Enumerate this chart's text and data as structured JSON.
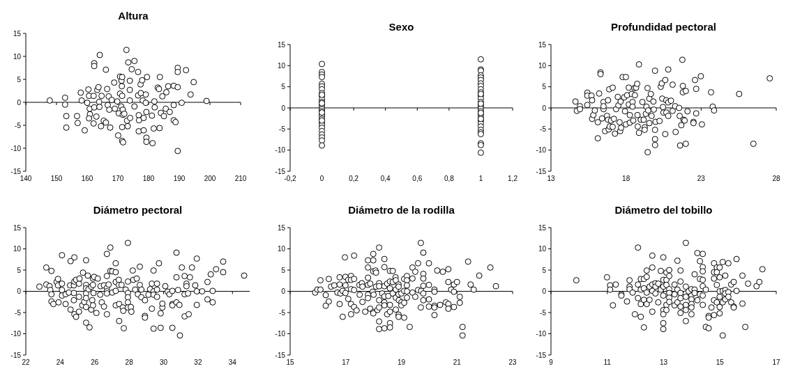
{
  "chart_data": [
    {
      "type": "scatter",
      "title": "Altura",
      "marker": "circle",
      "color": "#000000",
      "xlim": [
        140,
        210
      ],
      "xticks": [
        140,
        150,
        160,
        170,
        180,
        190,
        200,
        210
      ],
      "ylim": [
        -15,
        15
      ],
      "yticks": [
        -15,
        -10,
        -5,
        0,
        5,
        10,
        15
      ],
      "x": [
        147.8,
        152.8,
        152.8,
        153.2,
        153.2,
        156.7,
        156.9,
        157.9,
        158.2,
        159.2,
        160.4,
        160,
        160.6,
        160.8,
        160.9,
        160.6,
        162.3,
        162.3,
        162.1,
        162.3,
        162.1,
        163,
        163.3,
        163.7,
        164.1,
        163.9,
        164,
        164.5,
        164.7,
        165.4,
        166.1,
        166.1,
        166.5,
        167,
        166.7,
        167.2,
        167.5,
        168,
        168.8,
        169,
        169.8,
        170.1,
        170.3,
        170.7,
        170.7,
        171.1,
        171.2,
        171.3,
        171.4,
        171.4,
        171.7,
        171.4,
        171.6,
        171.6,
        171.4,
        172.1,
        172.8,
        173,
        173.2,
        173.4,
        173.9,
        173.9,
        173.9,
        174,
        174.5,
        175.4,
        175.4,
        176.6,
        176.6,
        176.8,
        176.8,
        176.9,
        177.4,
        177.5,
        177.9,
        178.1,
        178.4,
        178.4,
        179.1,
        179.1,
        179.3,
        179.3,
        179.3,
        179.5,
        181.1,
        181.3,
        181.7,
        182,
        181.9,
        183,
        183.4,
        183.6,
        183.7,
        184,
        184.5,
        185,
        185.6,
        185.8,
        186.4,
        186.9,
        188.2,
        188.2,
        188.2,
        188.8,
        189.5,
        189.5,
        189.5,
        189.5,
        190.8,
        192.2,
        193.7,
        194.7,
        198.9
      ],
      "values": [
        0.4,
        1,
        -0.5,
        -3,
        -5.5,
        -3,
        -4.5,
        2.1,
        0.4,
        -6.1,
        2.8,
        -0.1,
        1.4,
        -1.4,
        -2.6,
        -3.5,
        8.5,
        7.9,
        1.4,
        -1.1,
        -4.6,
        -3.1,
        2.7,
        3.3,
        10.3,
        0.1,
        -1,
        -5.2,
        1.4,
        -4,
        7.1,
        -4.4,
        2.9,
        1.3,
        -0.6,
        -1.6,
        -5.5,
        0.5,
        4.3,
        -1.4,
        0.2,
        -7.2,
        -2.4,
        5.6,
        1.9,
        -0.9,
        4.7,
        3.5,
        1.4,
        -8.4,
        -8.7,
        5.5,
        -1.6,
        -2.7,
        -5.4,
        -2.5,
        11.4,
        -4,
        -5.2,
        8.7,
        2.7,
        4.7,
        0.4,
        -3.4,
        7.2,
        9,
        -0.9,
        6.6,
        1.5,
        -2.8,
        -6.3,
        -3.9,
        3.9,
        2,
        4.8,
        0.4,
        -3.4,
        -6.1,
        1.7,
        -0.1,
        -2.1,
        -7.7,
        -8.6,
        5.5,
        -2.9,
        -8.9,
        -5.7,
        -1.1,
        0.2,
        3.2,
        2.9,
        -5.6,
        5.5,
        -2.3,
        1.3,
        -3,
        -1.4,
        2.2,
        3.5,
        -2.1,
        3.6,
        -0.6,
        -3.9,
        -4.3,
        7.5,
        6.6,
        3.3,
        -10.6,
        -0.1,
        7,
        1.7,
        4.4,
        0.3
      ]
    },
    {
      "type": "scatter",
      "title": "Sexo",
      "marker": "circle",
      "color": "#000000",
      "xlim": [
        -0.2,
        1.2
      ],
      "xticks": [
        {
          "value": -0.2,
          "label": "-0,2"
        },
        0,
        {
          "value": 0.2,
          "label": "0,2"
        },
        {
          "value": 0.4,
          "label": "0,4"
        },
        {
          "value": 0.6,
          "label": "0,6"
        },
        {
          "value": 0.8,
          "label": "0,8"
        },
        1,
        {
          "value": 1.2,
          "label": "1,2"
        }
      ],
      "ylim": [
        -15,
        15
      ],
      "yticks": [
        -15,
        -10,
        -5,
        0,
        5,
        10,
        15
      ],
      "x": [
        0,
        0,
        0,
        0,
        0,
        0,
        0,
        0,
        0,
        0,
        0,
        0,
        0,
        0,
        0,
        0,
        0,
        0,
        0,
        0,
        0,
        0,
        0,
        0,
        0,
        0,
        0,
        0,
        0,
        0,
        1,
        1,
        1,
        1,
        1,
        1,
        1,
        1,
        1,
        1,
        1,
        1,
        1,
        1,
        1,
        1,
        1,
        1,
        1,
        1,
        1,
        1,
        1,
        1,
        1,
        1,
        1,
        1,
        1,
        1,
        1,
        1
      ],
      "values": [
        10.4,
        8.5,
        7.9,
        7.3,
        5.7,
        5.1,
        4.4,
        3.5,
        2.8,
        2,
        1.4,
        0.7,
        0.3,
        -0.3,
        -0.8,
        -1.5,
        -2,
        -2.6,
        -3.5,
        -4.1,
        -4.7,
        -5.5,
        -6.3,
        -7,
        -7.7,
        -8.9,
        1.1,
        -1.1,
        -3,
        3.1,
        11.5,
        9.1,
        8.8,
        7.7,
        7.2,
        6.6,
        5.8,
        5.2,
        4.4,
        3.7,
        2.9,
        2.2,
        1.4,
        0.7,
        0.3,
        -0.2,
        -0.8,
        -1.5,
        -2.2,
        -3,
        -3.7,
        -4.4,
        -5.2,
        -5.8,
        -6.2,
        -8.4,
        -8.8,
        -10.6,
        1,
        -1.2,
        3.3,
        -2.6
      ]
    },
    {
      "type": "scatter",
      "title": "Profundidad pectoral",
      "marker": "circle",
      "color": "#000000",
      "xlim": [
        13,
        28
      ],
      "xticks": [
        13,
        18,
        23,
        28
      ],
      "ylim": [
        -15,
        15
      ],
      "yticks": [
        -15,
        -10,
        -5,
        0,
        5,
        10,
        15
      ],
      "x": [
        14.63,
        14.72,
        14.93,
        14.93,
        15.42,
        15.42,
        15.42,
        15.7,
        15.74,
        15.74,
        15.82,
        15.92,
        16.12,
        16.12,
        16.21,
        16.3,
        16.3,
        16.4,
        16.5,
        16.5,
        16.5,
        16.6,
        16.73,
        16.8,
        16.8,
        16.84,
        16.88,
        16.91,
        17,
        17.11,
        17.11,
        17.19,
        17.26,
        17.34,
        17.45,
        17.49,
        17.57,
        17.61,
        17.64,
        17.67,
        17.77,
        17.99,
        17.88,
        17.93,
        17.99,
        18.07,
        18.18,
        18.18,
        18.25,
        18.25,
        18.38,
        18.43,
        18.43,
        18.48,
        18.56,
        18.59,
        18.67,
        18.74,
        18.76,
        18.78,
        18.86,
        18.86,
        18.98,
        19.09,
        19.17,
        19.24,
        19.24,
        19.32,
        19.36,
        19.43,
        19.44,
        19.47,
        19.55,
        19.55,
        19.65,
        19.7,
        19.82,
        19.85,
        19.93,
        19.93,
        19.93,
        19.93,
        19.96,
        20.23,
        20.31,
        20.38,
        20.41,
        20.46,
        20.49,
        20.61,
        20.61,
        20.68,
        20.68,
        20.81,
        20.81,
        20.81,
        20.99,
        21.1,
        21.1,
        21.27,
        21.3,
        21.53,
        21.57,
        21.6,
        21.68,
        21.75,
        21.78,
        21.78,
        21.83,
        21.9,
        21.98,
        21.98,
        22.09,
        22.49,
        22.49,
        22.59,
        22.67,
        22.67,
        22.98,
        23.05,
        23.66,
        23.77,
        23.86,
        25.53,
        26.48,
        27.57
      ],
      "values": [
        1.5,
        -0.7,
        0.4,
        -0.3,
        3.6,
        2.9,
        0.7,
        2.9,
        1.8,
        -2.6,
        -1.7,
        -0.6,
        -3.4,
        -7.2,
        3.4,
        8.4,
        8,
        -2.5,
        1.4,
        -0.3,
        0.4,
        -5.5,
        -1.9,
        1.8,
        -2.8,
        -5.1,
        4.4,
        -4.4,
        -3,
        4.8,
        -4.5,
        -2.6,
        -6.1,
        -0.3,
        2.6,
        0.6,
        -3.4,
        -5.5,
        1.5,
        -4.7,
        7.3,
        7.3,
        2.5,
        -0.8,
        -3.9,
        3,
        4.8,
        0.8,
        -1.7,
        -3.5,
        3.3,
        1.4,
        0.3,
        -3,
        4.7,
        3,
        4.8,
        5.7,
        -1.7,
        -4.4,
        10.3,
        -5.9,
        -2.8,
        1.4,
        -2.8,
        -4.6,
        -5.2,
        -1.4,
        0.3,
        4.7,
        -10.5,
        -0.6,
        2.2,
        -3.6,
        3.3,
        -1.9,
        1.5,
        -0.4,
        8.8,
        -5.2,
        -7.4,
        -8.8,
        -3.3,
        -3.1,
        5,
        5.8,
        2.2,
        0.2,
        -1.1,
        6.6,
        -6.2,
        1.8,
        -1.1,
        1.3,
        -1.9,
        9.1,
        1.7,
        5.5,
        -0.7,
        0.4,
        -5.7,
        0,
        -1.9,
        -8.9,
        -4.1,
        11.4,
        5.2,
        3.7,
        -2.8,
        -3,
        4,
        -8.5,
        -0.8,
        -3.3,
        -3.6,
        6.6,
        4.5,
        -1.3,
        7.5,
        -3.9,
        3.7,
        0.3,
        -0.6,
        3.3,
        -8.5,
        7
      ]
    },
    {
      "type": "scatter",
      "title": "Diámetro pectoral",
      "marker": "circle",
      "color": "#000000",
      "xlim": [
        22,
        35
      ],
      "xticks": [
        22,
        24,
        26,
        28,
        30,
        32,
        34
      ],
      "ylim": [
        -15,
        15
      ],
      "yticks": [
        -15,
        -10,
        -5,
        0,
        5,
        10,
        15
      ],
      "x": [
        22.79,
        23.19,
        23.19,
        23.38,
        23.42,
        23.49,
        23.49,
        23.49,
        23.6,
        23.79,
        23.87,
        23.87,
        23.9,
        24.1,
        24.1,
        24.1,
        24.1,
        24.31,
        24.31,
        24.5,
        24.57,
        24.6,
        24.6,
        24.79,
        24.79,
        24.79,
        24.82,
        24.82,
        24.82,
        24.92,
        24.92,
        25.09,
        25.09,
        25.09,
        25.12,
        25.28,
        25.32,
        25.39,
        25.5,
        25.5,
        25.5,
        25.5,
        25.5,
        25.5,
        25.5,
        25.6,
        25.64,
        25.7,
        25.8,
        25.8,
        25.86,
        25.9,
        25.9,
        25.9,
        25.93,
        25.97,
        26.1,
        26.18,
        26.32,
        26.34,
        26.41,
        26.54,
        26.54,
        26.71,
        26.71,
        26.71,
        26.71,
        26.71,
        26.71,
        26.81,
        26.91,
        26.91,
        27.02,
        27.02,
        27.22,
        27.22,
        27.22,
        27.22,
        27.22,
        27.4,
        27.4,
        27.42,
        27.42,
        27.56,
        27.63,
        27.66,
        27.69,
        27.8,
        27.93,
        27.93,
        27.93,
        27.93,
        27.93,
        27.93,
        28.1,
        28.13,
        28.21,
        28.24,
        28.35,
        28.44,
        28.51,
        28.62,
        28.62,
        28.71,
        28.71,
        28.92,
        28.92,
        28.92,
        29.12,
        29.22,
        29.32,
        29.32,
        29.42,
        29.42,
        29.42,
        29.42,
        29.62,
        29.62,
        29.62,
        29.73,
        29.83,
        29.83,
        29.93,
        29.93,
        30.1,
        30.24,
        30.34,
        30.51,
        30.51,
        30.51,
        30.51,
        30.75,
        30.75,
        30.75,
        30.84,
        30.92,
        30.95,
        31.06,
        31.22,
        31.22,
        31.22,
        31.33,
        31.33,
        31.42,
        31.46,
        31.53,
        31.65,
        31.84,
        31.93,
        31.93,
        31.93,
        32.24,
        32.55,
        32.55,
        32.74,
        32.85,
        32.85,
        33.05,
        33.46,
        33.46,
        34.68
      ],
      "values": [
        1.1,
        5.6,
        1.6,
        1.2,
        0.3,
        4.8,
        -0.7,
        -2.4,
        -3,
        2.2,
        2.9,
        1.4,
        -2.6,
        8.5,
        1.8,
        0.3,
        -1,
        -0.7,
        -3,
        -0.3,
        1.4,
        7.1,
        -4.3,
        1.4,
        -2.1,
        -0.4,
        8,
        2.3,
        -5.4,
        2.7,
        -6,
        1.8,
        -1.3,
        -4.8,
        3,
        -3.3,
        4.4,
        -2.5,
        7.3,
        1.5,
        0.7,
        -0.5,
        -1.6,
        -3.7,
        -7.4,
        3.7,
        0.5,
        -8.5,
        1.1,
        -4.3,
        -2.1,
        3,
        1.5,
        -3.3,
        -0.4,
        3.4,
        -5.1,
        3,
        -0.8,
        1.2,
        -2.6,
        -3.6,
        1.4,
        8.8,
        3.6,
        0.8,
        0,
        -0.5,
        -5.4,
        1.6,
        10.3,
        4.8,
        4.7,
        -0.3,
        6.6,
        4.5,
        2.2,
        0.1,
        -3.3,
        2.7,
        1.5,
        -3,
        -7,
        1.5,
        -3.8,
        -4.6,
        -8.7,
        0.4,
        11.4,
        2.3,
        -0.4,
        -1.4,
        -2.6,
        -3.8,
        -3.7,
        -4.8,
        4.9,
        2.7,
        0.4,
        3,
        -0.7,
        5.8,
        1.5,
        0.4,
        -1.4,
        -2.1,
        -5.8,
        -6.2,
        -0.8,
        0.5,
        1.8,
        -4.1,
        4.9,
        -8.8,
        0,
        -0.8,
        1.8,
        0.4,
        -1.3,
        6.6,
        -5.2,
        -8.6,
        -3.8,
        -2.9,
        1.2,
        -0.1,
        -0.7,
        0.1,
        -3,
        -3.3,
        -8.6,
        9.1,
        3.3,
        -2.6,
        0.3,
        -3.2,
        -10.4,
        5.6,
        3.6,
        -0.7,
        -5.9,
        1.8,
        1.2,
        -0.5,
        -5.4,
        3.3,
        5.6,
        1.4,
        7.7,
        0,
        -3.2,
        0,
        2.2,
        -1.9,
        4,
        0.1,
        -2.6,
        5.2,
        7,
        4.5,
        3.7
      ]
    },
    {
      "type": "scatter",
      "title": "Diámetro de la rodilla",
      "marker": "circle",
      "color": "#000000",
      "xlim": [
        15,
        23
      ],
      "xticks": [
        15,
        17,
        19,
        21,
        23
      ],
      "ylim": [
        -15,
        15
      ],
      "yticks": [
        -15,
        -10,
        -5,
        0,
        5,
        10,
        15
      ],
      "x": [
        15.9,
        15.98,
        16.09,
        16.09,
        16.28,
        16.28,
        16.39,
        16.39,
        16.47,
        16.59,
        16.7,
        16.78,
        16.78,
        16.78,
        16.81,
        16.89,
        16.89,
        16.97,
        16.99,
        16.99,
        16.99,
        17.09,
        17.09,
        17.19,
        17.19,
        17.19,
        17.19,
        17.19,
        17.3,
        17.3,
        17.3,
        17.3,
        17.39,
        17.49,
        17.5,
        17.58,
        17.6,
        17.6,
        17.7,
        17.8,
        17.8,
        17.8,
        17.8,
        17.8,
        17.8,
        17.88,
        17.88,
        17.97,
        17.99,
        17.99,
        17.99,
        17.99,
        17.99,
        18,
        18.07,
        18.09,
        18.09,
        18.14,
        18.2,
        18.2,
        18.2,
        18.2,
        18.2,
        18.2,
        18.2,
        18.31,
        18.39,
        18.39,
        18.39,
        18.39,
        18.39,
        18.39,
        18.39,
        18.49,
        18.49,
        18.53,
        18.59,
        18.59,
        18.59,
        18.59,
        18.59,
        18.59,
        18.59,
        18.69,
        18.69,
        18.69,
        18.79,
        18.8,
        18.8,
        18.8,
        18.8,
        18.9,
        18.9,
        18.9,
        18.9,
        18.9,
        18.91,
        19,
        19,
        19,
        19.1,
        19.1,
        19.1,
        19.1,
        19.2,
        19.2,
        19.2,
        19.2,
        19.2,
        19.3,
        19.4,
        19.4,
        19.4,
        19.5,
        19.5,
        19.6,
        19.6,
        19.7,
        19.7,
        19.71,
        19.79,
        19.79,
        19.79,
        19.79,
        19.79,
        19.79,
        19.99,
        19.99,
        19.99,
        19.99,
        20.19,
        20.19,
        20.19,
        20.19,
        20.19,
        20.29,
        20.39,
        20.49,
        20.6,
        20.69,
        20.69,
        20.69,
        20.69,
        20.79,
        20.89,
        20.89,
        20.89,
        21,
        21.1,
        21.1,
        21.2,
        21.2,
        21.4,
        21.49,
        21.6,
        21.8,
        22.2,
        22.4
      ],
      "values": [
        -0.3,
        0.4,
        0.4,
        2.6,
        -0.9,
        -3.4,
        2.9,
        -2.4,
        1.1,
        1.4,
        -0.3,
        3.3,
        1.6,
        -3,
        -0.5,
        -6,
        0.1,
        8,
        3.4,
        1.4,
        -0.4,
        -1.8,
        2.7,
        3.6,
        2.7,
        0.5,
        -3,
        -5.4,
        8.4,
        2.9,
        0.3,
        -3.7,
        -4.5,
        1.5,
        -0.8,
        1.9,
        -2.5,
        1.1,
        -4.8,
        3.2,
        7.3,
        5.6,
        1.5,
        -0.8,
        -1.6,
        1.8,
        -4.1,
        -0.1,
        8.8,
        7.3,
        4.7,
        -4.9,
        -5.2,
        -0.8,
        4.9,
        4.4,
        1.1,
        -4.4,
        10.3,
        1.9,
        1.2,
        -2.1,
        -3.8,
        -7.1,
        -8.9,
        -0.5,
        7.6,
        5.7,
        1.2,
        -1.2,
        -2.6,
        -3.3,
        -8.7,
        1.8,
        -5.4,
        -1.1,
        4.8,
        2.3,
        0.7,
        -3.2,
        -4.8,
        -7.5,
        -8.5,
        4.8,
        2.2,
        -0.5,
        3.3,
        2.6,
        0.4,
        -1.5,
        -4.3,
        1.6,
        1.1,
        -0.7,
        -5.5,
        -6,
        -2.1,
        -0.5,
        -2.6,
        -3.3,
        2.9,
        -2.7,
        -6.2,
        0.1,
        3.6,
        2.6,
        1.4,
        0,
        -1.5,
        -8.4,
        5.6,
        3,
        -0.3,
        4.6,
        -1.3,
        6.6,
        0.3,
        11.4,
        -3.8,
        0.1,
        9.1,
        4.1,
        3,
        1.3,
        -0.5,
        -2.1,
        6.6,
        1.5,
        -1.9,
        -3.6,
        0.4,
        -0.1,
        -3.4,
        -3.8,
        -5.6,
        4.9,
        -3.2,
        4.6,
        -2.6,
        5.2,
        2.2,
        -3,
        -4.1,
        0.4,
        1.6,
        -0.1,
        -3.7,
        2.2,
        -1.3,
        -2.7,
        -8.4,
        -10.4,
        7,
        1.6,
        0.4,
        3.7,
        5.6,
        1.2
      ]
    },
    {
      "type": "scatter",
      "title": "Diámetro del tobillo",
      "marker": "circle",
      "color": "#000000",
      "xlim": [
        9,
        17
      ],
      "xticks": [
        9,
        11,
        13,
        15,
        17
      ],
      "ylim": [
        -15,
        15
      ],
      "yticks": [
        -15,
        -10,
        -5,
        0,
        5,
        10,
        15
      ],
      "x": [
        9.9,
        10.99,
        11.1,
        11.1,
        11.2,
        11.3,
        11.5,
        11.5,
        11.7,
        11.79,
        11.79,
        11.79,
        11.9,
        11.98,
        12.09,
        12.09,
        12.09,
        12.19,
        12.19,
        12.19,
        12.19,
        12.3,
        12.3,
        12.3,
        12.3,
        12.4,
        12.4,
        12.4,
        12.4,
        12.5,
        12.5,
        12.6,
        12.6,
        12.6,
        12.6,
        12.6,
        12.71,
        12.71,
        12.71,
        12.81,
        12.81,
        12.9,
        12.9,
        12.99,
        12.99,
        12.99,
        12.99,
        12.99,
        12.99,
        12.99,
        12.99,
        13.1,
        13.1,
        13.1,
        13.1,
        13.1,
        13.2,
        13.2,
        13.2,
        13.2,
        13.2,
        13.2,
        13.39,
        13.39,
        13.39,
        13.49,
        13.49,
        13.49,
        13.6,
        13.6,
        13.6,
        13.6,
        13.6,
        13.6,
        13.79,
        13.79,
        13.79,
        13.79,
        13.79,
        13.79,
        13.79,
        13.89,
        13.99,
        13.99,
        13.99,
        13.99,
        13.99,
        13.99,
        14.1,
        14.1,
        14.1,
        14.2,
        14.2,
        14.29,
        14.29,
        14.29,
        14.39,
        14.39,
        14.39,
        14.39,
        14.39,
        14.39,
        14.39,
        14.5,
        14.5,
        14.6,
        14.6,
        14.6,
        14.7,
        14.79,
        14.79,
        14.79,
        14.79,
        14.79,
        14.89,
        14.89,
        14.89,
        14.89,
        14.99,
        14.99,
        14.99,
        14.99,
        14.99,
        14.99,
        15.1,
        15.1,
        15.1,
        15.1,
        15.19,
        15.19,
        15.19,
        15.19,
        15.3,
        15.3,
        15.3,
        15.4,
        15.4,
        15.49,
        15.49,
        15.49,
        15.59,
        15.59,
        15.8,
        15.8,
        15.9,
        16,
        16.3,
        16.4,
        16.51
      ],
      "values": [
        2.6,
        3.3,
        1.4,
        0.4,
        -3.3,
        1.6,
        -0.7,
        -1,
        -2.4,
        2.6,
        1.1,
        0.5,
        -0.3,
        -5.4,
        10.3,
        1.6,
        -1.6,
        2.9,
        0.4,
        -3,
        -6,
        2.9,
        0.7,
        -8.5,
        -2,
        4.9,
        3.4,
        -0.3,
        -3,
        1.1,
        -2,
        8.4,
        5.6,
        1.6,
        -4.8,
        0.1,
        1.9,
        1.1,
        -0.5,
        1.8,
        -2.6,
        4.8,
        0.4,
        8,
        2.7,
        1.1,
        -1,
        -4.4,
        -5.4,
        -7.5,
        -8.9,
        4.4,
        2.7,
        1.5,
        -3.2,
        -4.4,
        5,
        3.6,
        0.5,
        -0.4,
        -1.5,
        -2.5,
        -3.3,
        1.6,
        -0.7,
        7.2,
        -2.6,
        0.4,
        4.9,
        2.3,
        -0.4,
        -1.6,
        -3.6,
        -5.1,
        11.4,
        1.1,
        -0.5,
        -1.3,
        -3.2,
        -4.4,
        -7,
        0,
        0.5,
        -1,
        -1.9,
        -3,
        -3.8,
        -5.4,
        4,
        0.4,
        -0.4,
        9,
        -2.1,
        7.1,
        2.9,
        -0.7,
        8.8,
        5.7,
        4.7,
        2.7,
        1.2,
        -1,
        -3.2,
        0.4,
        -8.4,
        -8.7,
        -5.8,
        -6.2,
        -3.8,
        6.6,
        4.5,
        3,
        -2.1,
        -5.6,
        5.6,
        4.5,
        1.5,
        -2.6,
        5.6,
        3.3,
        0,
        -1.3,
        -3.7,
        -5.2,
        6.9,
        0.1,
        -2.6,
        -10.4,
        3.7,
        0.3,
        -0.5,
        -1.9,
        6.6,
        -0.2,
        -1.3,
        1.6,
        -2.6,
        2.2,
        -3.6,
        -3.8,
        7.6,
        0.1,
        3.7,
        -2.9,
        -8.4,
        1.8,
        1.2,
        2.2,
        5.2
      ]
    }
  ]
}
